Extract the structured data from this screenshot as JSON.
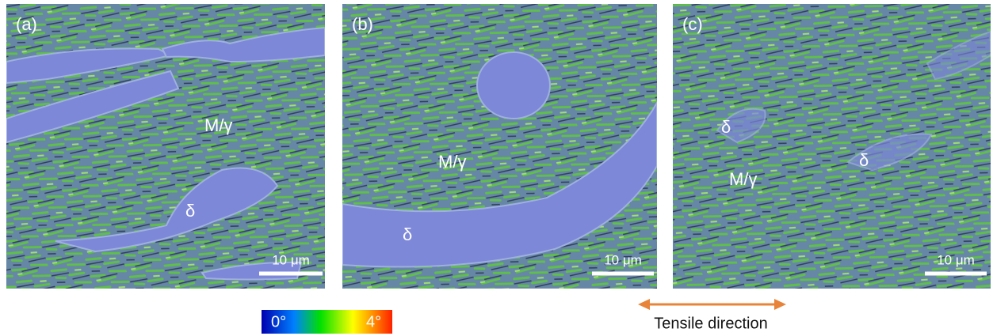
{
  "panels": [
    {
      "label": "(a)",
      "annotations": [
        "M/γ",
        "δ"
      ],
      "scale_bar": "10 μm"
    },
    {
      "label": "(b)",
      "annotations": [
        "M/γ",
        "δ"
      ],
      "scale_bar": "10 μm"
    },
    {
      "label": "(c)",
      "annotations": [
        "δ",
        "δ",
        "M/γ"
      ],
      "scale_bar": "10 μm"
    }
  ],
  "colorbar": {
    "min_label": "0°",
    "max_label": "4°"
  },
  "arrow_label": "Tensile direction"
}
